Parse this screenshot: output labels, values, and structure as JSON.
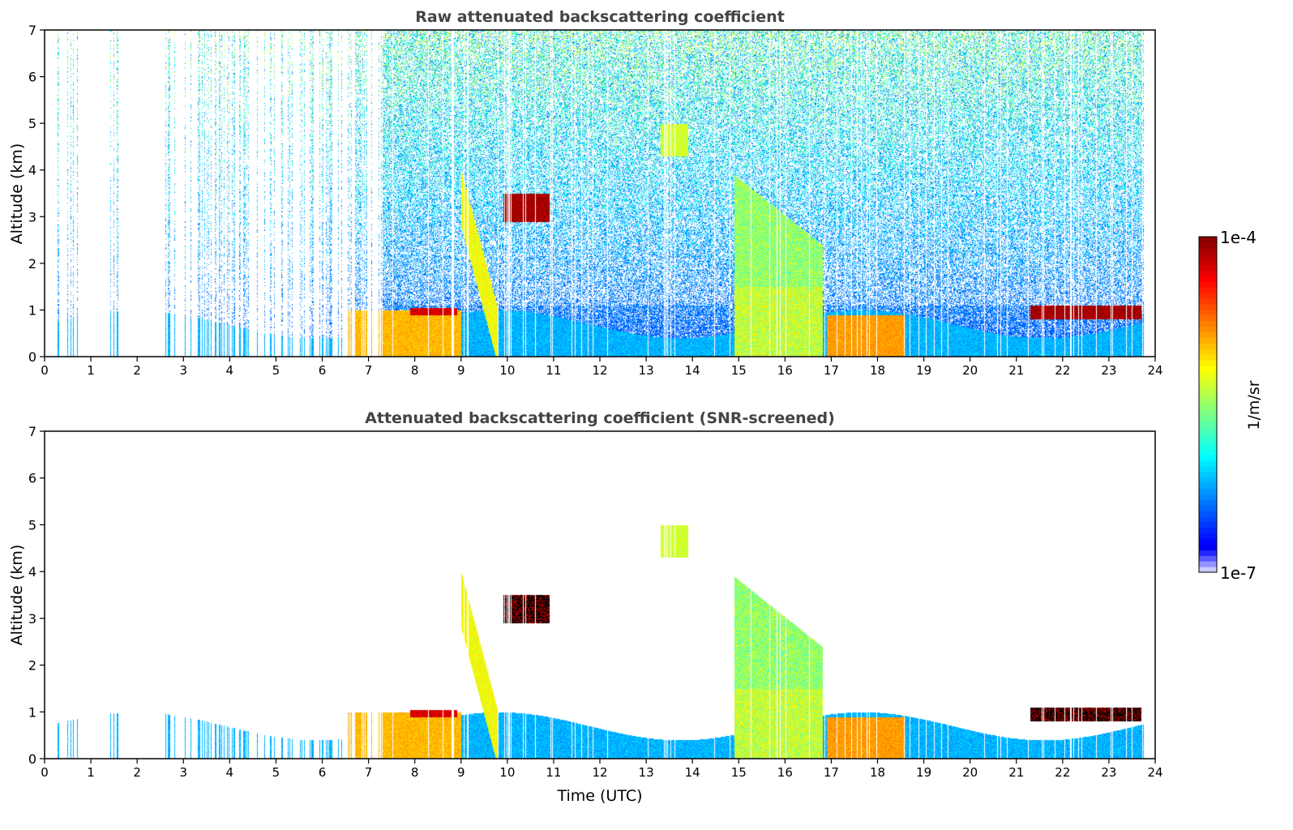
{
  "chart_data": [
    {
      "type": "heatmap",
      "title": "Raw attenuated backscattering coefficient",
      "xlabel": "",
      "ylabel": "Altitude (km)",
      "xlim": [
        0,
        24
      ],
      "ylim": [
        0,
        7
      ],
      "xticks": [
        "0",
        "1",
        "2",
        "3",
        "4",
        "5",
        "6",
        "7",
        "8",
        "9",
        "10",
        "11",
        "12",
        "13",
        "14",
        "15",
        "16",
        "17",
        "18",
        "19",
        "20",
        "21",
        "22",
        "23",
        "24"
      ],
      "yticks": [
        "0",
        "1",
        "2",
        "3",
        "4",
        "5",
        "6",
        "7"
      ],
      "screened": false,
      "features": [
        {
          "name": "boundary-layer-aerosol",
          "t_start": 6.5,
          "t_end": 9.0,
          "alt_top": 1.0,
          "level": 0.72
        },
        {
          "name": "boundary-layer-aerosol",
          "t_start": 16.9,
          "t_end": 18.6,
          "alt_top": 0.9,
          "level": 0.75
        },
        {
          "name": "cloud",
          "t_start": 9.9,
          "t_end": 10.9,
          "alt_top": 3.5,
          "alt_bottom": 2.9,
          "level": 1.0
        },
        {
          "name": "cloud",
          "t_start": 21.3,
          "t_end": 23.7,
          "alt_top": 1.1,
          "alt_bottom": 0.8,
          "level": 1.0
        },
        {
          "name": "cloud",
          "t_start": 7.9,
          "t_end": 8.9,
          "alt_top": 1.05,
          "alt_bottom": 0.9,
          "level": 0.95
        },
        {
          "name": "precipitation-streak",
          "t_start": 9.0,
          "t_end": 9.8,
          "alt_top": 4.0,
          "level": 0.65
        },
        {
          "name": "aerosol-plume",
          "t_start": 14.9,
          "t_end": 16.8,
          "alt_top": 3.9,
          "level": 0.6
        },
        {
          "name": "cirrus",
          "t_start": 13.3,
          "t_end": 13.9,
          "alt_top": 5.0,
          "alt_bottom": 4.3,
          "level": 0.6
        }
      ]
    },
    {
      "type": "heatmap",
      "title": "Attenuated backscattering coefficient (SNR-screened)",
      "xlabel": "Time (UTC)",
      "ylabel": "Altitude (km)",
      "xlim": [
        0,
        24
      ],
      "ylim": [
        0,
        7
      ],
      "xticks": [
        "0",
        "1",
        "2",
        "3",
        "4",
        "5",
        "6",
        "7",
        "8",
        "9",
        "10",
        "11",
        "12",
        "13",
        "14",
        "15",
        "16",
        "17",
        "18",
        "19",
        "20",
        "21",
        "22",
        "23",
        "24"
      ],
      "yticks": [
        "0",
        "1",
        "2",
        "3",
        "4",
        "5",
        "6",
        "7"
      ],
      "screened": true
    }
  ],
  "colorbar": {
    "label": "1/m/sr",
    "min_label": "1e-7",
    "max_label": "1e-4",
    "scale": "log",
    "range": [
      1e-07,
      0.0001
    ],
    "colormap": "jet"
  }
}
